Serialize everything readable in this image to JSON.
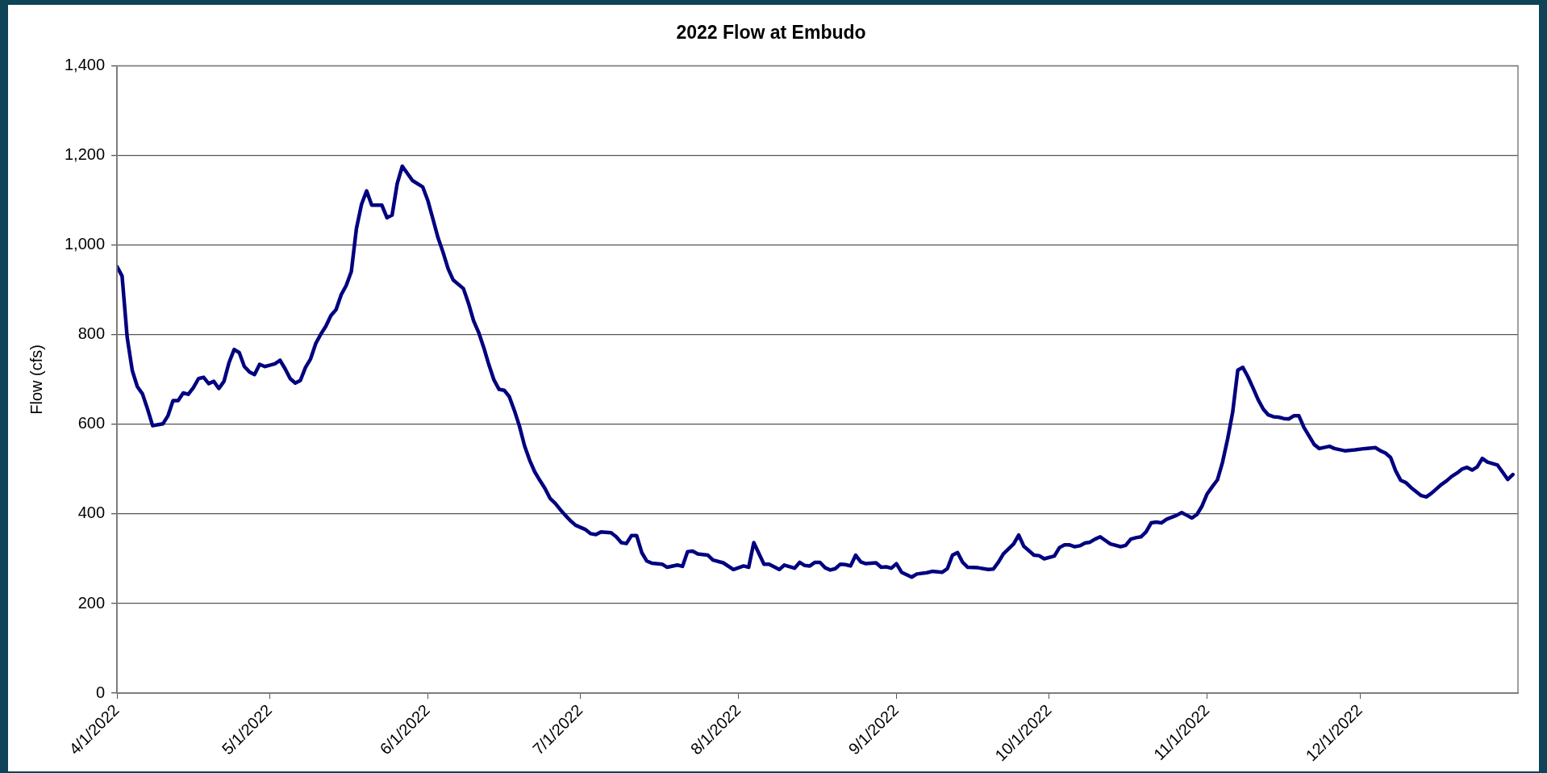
{
  "chart_data": {
    "type": "line",
    "title": "2022 Flow at Embudo",
    "ylabel": "Flow (cfs)",
    "xlim": [
      "2022-04-01",
      "2023-01-01"
    ],
    "xticks": [
      {
        "value": "2022-04-01",
        "label": "4/1/2022"
      },
      {
        "value": "2022-05-01",
        "label": "5/1/2022"
      },
      {
        "value": "2022-06-01",
        "label": "6/1/2022"
      },
      {
        "value": "2022-07-01",
        "label": "7/1/2022"
      },
      {
        "value": "2022-08-01",
        "label": "8/1/2022"
      },
      {
        "value": "2022-09-01",
        "label": "9/1/2022"
      },
      {
        "value": "2022-10-01",
        "label": "10/1/2022"
      },
      {
        "value": "2022-11-01",
        "label": "11/1/2022"
      },
      {
        "value": "2022-12-01",
        "label": "12/1/2022"
      }
    ],
    "ylim": [
      0,
      1400
    ],
    "yticks": [
      {
        "value": 0,
        "label": "0"
      },
      {
        "value": 200,
        "label": "200"
      },
      {
        "value": 400,
        "label": "400"
      },
      {
        "value": 600,
        "label": "600"
      },
      {
        "value": 800,
        "label": "800"
      },
      {
        "value": 1000,
        "label": "1,000"
      },
      {
        "value": 1200,
        "label": "1,200"
      },
      {
        "value": 1400,
        "label": "1,400"
      }
    ],
    "grid": "y",
    "marker": "none",
    "line_style": "solid",
    "series": [
      {
        "color": "#000080",
        "x": [
          "2022-04-01",
          "2022-04-02",
          "2022-04-03",
          "2022-04-04",
          "2022-04-05",
          "2022-04-06",
          "2022-04-07",
          "2022-04-08",
          "2022-04-10",
          "2022-04-11",
          "2022-04-12",
          "2022-04-13",
          "2022-04-14",
          "2022-04-15",
          "2022-04-16",
          "2022-04-17",
          "2022-04-18",
          "2022-04-19",
          "2022-04-20",
          "2022-04-21",
          "2022-04-22",
          "2022-04-23",
          "2022-04-24",
          "2022-04-25",
          "2022-04-26",
          "2022-04-27",
          "2022-04-28",
          "2022-04-29",
          "2022-04-30",
          "2022-05-01",
          "2022-05-02",
          "2022-05-03",
          "2022-05-04",
          "2022-05-05",
          "2022-05-06",
          "2022-05-07",
          "2022-05-08",
          "2022-05-09",
          "2022-05-10",
          "2022-05-11",
          "2022-05-12",
          "2022-05-13",
          "2022-05-14",
          "2022-05-15",
          "2022-05-16",
          "2022-05-17",
          "2022-05-18",
          "2022-05-19",
          "2022-05-20",
          "2022-05-21",
          "2022-05-23",
          "2022-05-24",
          "2022-05-25",
          "2022-05-26",
          "2022-05-27",
          "2022-05-29",
          "2022-05-31",
          "2022-06-01",
          "2022-06-02",
          "2022-06-03",
          "2022-06-04",
          "2022-06-05",
          "2022-06-06",
          "2022-06-08",
          "2022-06-09",
          "2022-06-10",
          "2022-06-11",
          "2022-06-12",
          "2022-06-13",
          "2022-06-14",
          "2022-06-15",
          "2022-06-16",
          "2022-06-17",
          "2022-06-18",
          "2022-06-19",
          "2022-06-20",
          "2022-06-21",
          "2022-06-22",
          "2022-06-23",
          "2022-06-24",
          "2022-06-25",
          "2022-06-26",
          "2022-06-27",
          "2022-06-28",
          "2022-06-29",
          "2022-06-30",
          "2022-07-02",
          "2022-07-03",
          "2022-07-04",
          "2022-07-05",
          "2022-07-07",
          "2022-07-08",
          "2022-07-09",
          "2022-07-10",
          "2022-07-11",
          "2022-07-12",
          "2022-07-13",
          "2022-07-14",
          "2022-07-15",
          "2022-07-17",
          "2022-07-18",
          "2022-07-20",
          "2022-07-21",
          "2022-07-22",
          "2022-07-23",
          "2022-07-24",
          "2022-07-26",
          "2022-07-27",
          "2022-07-29",
          "2022-07-31",
          "2022-08-02",
          "2022-08-03",
          "2022-08-04",
          "2022-08-06",
          "2022-08-07",
          "2022-08-09",
          "2022-08-10",
          "2022-08-12",
          "2022-08-13",
          "2022-08-14",
          "2022-08-15",
          "2022-08-16",
          "2022-08-17",
          "2022-08-18",
          "2022-08-19",
          "2022-08-20",
          "2022-08-21",
          "2022-08-22",
          "2022-08-23",
          "2022-08-24",
          "2022-08-25",
          "2022-08-26",
          "2022-08-28",
          "2022-08-29",
          "2022-08-30",
          "2022-08-31",
          "2022-09-01",
          "2022-09-02",
          "2022-09-04",
          "2022-09-05",
          "2022-09-07",
          "2022-09-08",
          "2022-09-10",
          "2022-09-11",
          "2022-09-12",
          "2022-09-13",
          "2022-09-14",
          "2022-09-15",
          "2022-09-17",
          "2022-09-19",
          "2022-09-20",
          "2022-09-21",
          "2022-09-22",
          "2022-09-24",
          "2022-09-25",
          "2022-09-26",
          "2022-09-28",
          "2022-09-29",
          "2022-09-30",
          "2022-10-02",
          "2022-10-03",
          "2022-10-04",
          "2022-10-05",
          "2022-10-06",
          "2022-10-07",
          "2022-10-08",
          "2022-10-09",
          "2022-10-10",
          "2022-10-11",
          "2022-10-12",
          "2022-10-13",
          "2022-10-15",
          "2022-10-16",
          "2022-10-17",
          "2022-10-18",
          "2022-10-19",
          "2022-10-20",
          "2022-10-21",
          "2022-10-22",
          "2022-10-23",
          "2022-10-24",
          "2022-10-26",
          "2022-10-27",
          "2022-10-28",
          "2022-10-29",
          "2022-10-30",
          "2022-10-31",
          "2022-11-01",
          "2022-11-02",
          "2022-11-03",
          "2022-11-04",
          "2022-11-05",
          "2022-11-06",
          "2022-11-07",
          "2022-11-08",
          "2022-11-09",
          "2022-11-10",
          "2022-11-11",
          "2022-11-12",
          "2022-11-13",
          "2022-11-14",
          "2022-11-15",
          "2022-11-16",
          "2022-11-17",
          "2022-11-18",
          "2022-11-19",
          "2022-11-20",
          "2022-11-21",
          "2022-11-22",
          "2022-11-23",
          "2022-11-25",
          "2022-11-26",
          "2022-11-28",
          "2022-11-30",
          "2022-12-02",
          "2022-12-04",
          "2022-12-05",
          "2022-12-06",
          "2022-12-07",
          "2022-12-08",
          "2022-12-09",
          "2022-12-10",
          "2022-12-11",
          "2022-12-12",
          "2022-12-13",
          "2022-12-14",
          "2022-12-15",
          "2022-12-16",
          "2022-12-17",
          "2022-12-18",
          "2022-12-19",
          "2022-12-20",
          "2022-12-21",
          "2022-12-22",
          "2022-12-23",
          "2022-12-24",
          "2022-12-25",
          "2022-12-26",
          "2022-12-28",
          "2022-12-29",
          "2022-12-30",
          "2022-12-31"
        ],
        "values": [
          952,
          931,
          794,
          720,
          684,
          668,
          634,
          597,
          601,
          619,
          653,
          653,
          670,
          667,
          682,
          702,
          705,
          691,
          696,
          680,
          696,
          738,
          767,
          760,
          729,
          717,
          711,
          734,
          729,
          732,
          735,
          743,
          724,
          702,
          692,
          698,
          727,
          746,
          780,
          801,
          819,
          843,
          856,
          889,
          910,
          941,
          1037,
          1091,
          1121,
          1089,
          1089,
          1061,
          1067,
          1137,
          1176,
          1144,
          1130,
          1100,
          1059,
          1017,
          984,
          947,
          922,
          903,
          870,
          831,
          805,
          771,
          733,
          699,
          678,
          676,
          662,
          631,
          596,
          552,
          520,
          494,
          475,
          457,
          435,
          424,
          410,
          397,
          385,
          375,
          365,
          356,
          354,
          360,
          358,
          349,
          336,
          334,
          352,
          352,
          314,
          295,
          290,
          288,
          281,
          286,
          283,
          316,
          317,
          311,
          308,
          297,
          291,
          276,
          284,
          281,
          336,
          288,
          288,
          276,
          286,
          279,
          292,
          285,
          284,
          292,
          292,
          280,
          275,
          278,
          288,
          287,
          284,
          308,
          293,
          289,
          291,
          281,
          282,
          279,
          289,
          270,
          259,
          266,
          269,
          272,
          270,
          278,
          308,
          314,
          292,
          281,
          280,
          276,
          277,
          292,
          311,
          333,
          353,
          328,
          308,
          307,
          300,
          306,
          325,
          331,
          331,
          327,
          329,
          335,
          337,
          344,
          349,
          341,
          333,
          327,
          330,
          344,
          347,
          349,
          360,
          380,
          382,
          380,
          388,
          397,
          403,
          397,
          391,
          399,
          418,
          445,
          461,
          476,
          515,
          567,
          627,
          721,
          727,
          706,
          681,
          655,
          634,
          621,
          617,
          616,
          613,
          612,
          619,
          619,
          593,
          574,
          555,
          546,
          551,
          546,
          541,
          543,
          546,
          548,
          541,
          536,
          526,
          496,
          475,
          470,
          459,
          450,
          441,
          438,
          446,
          456,
          466,
          474,
          484,
          491,
          500,
          504,
          498,
          505,
          524,
          516,
          509,
          493,
          477,
          488
        ]
      }
    ]
  }
}
